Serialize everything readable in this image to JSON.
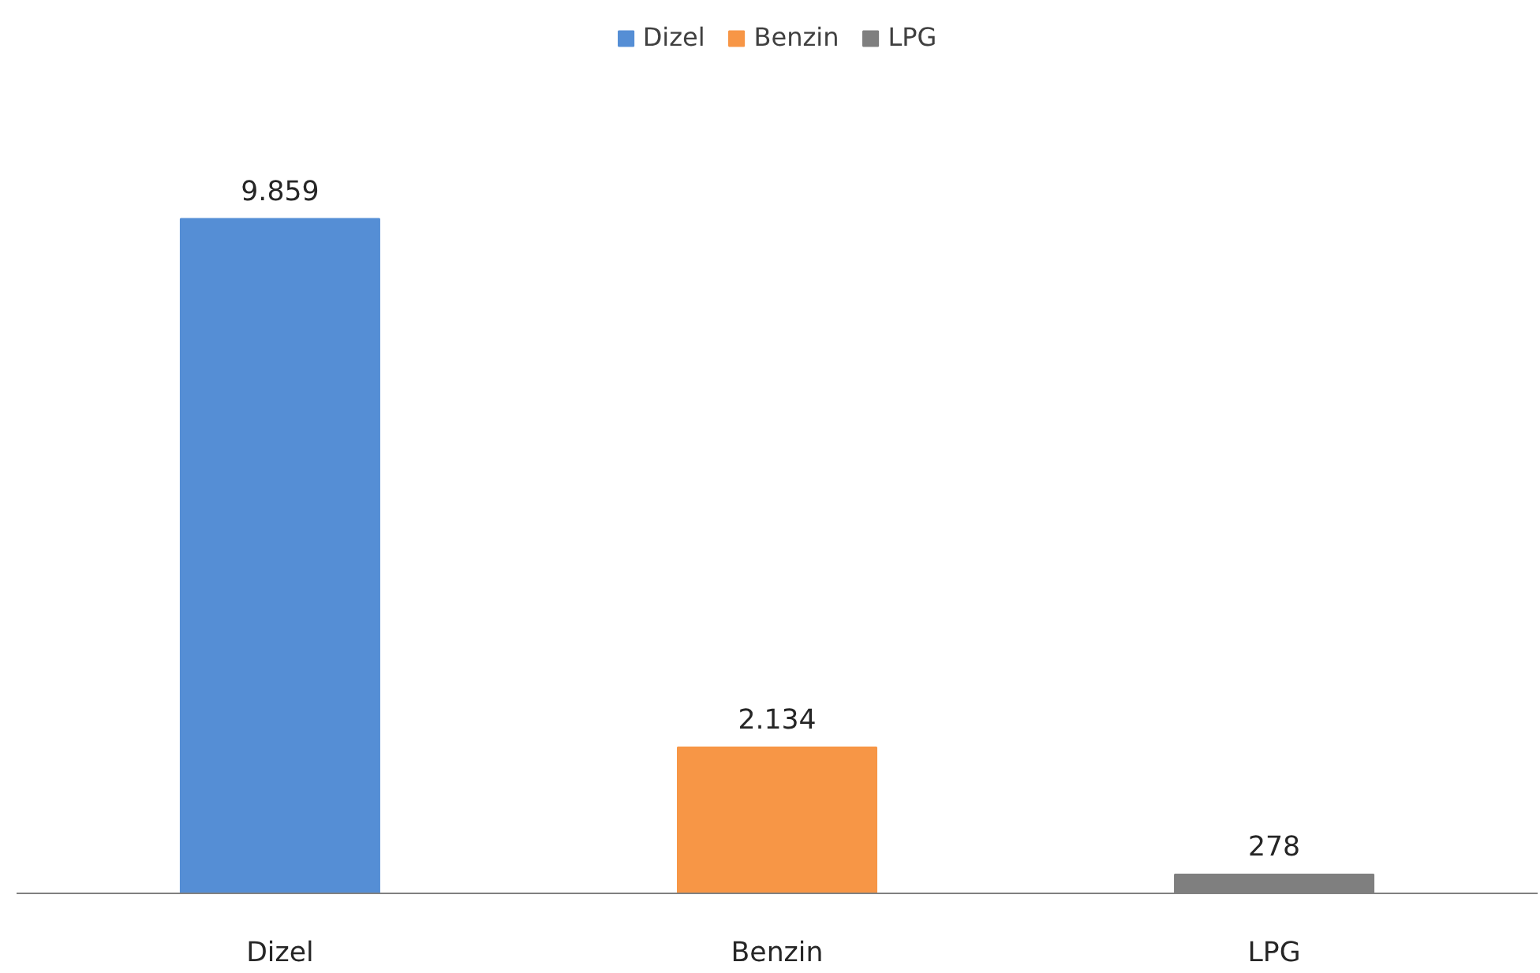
{
  "chart_data": {
    "type": "bar",
    "categories": [
      "Dizel",
      "Benzin",
      "LPG"
    ],
    "series": [
      {
        "name": "Dizel",
        "color": "#558ed5",
        "values": [
          9859,
          null,
          null
        ],
        "value_labels": [
          "9.859",
          null,
          null
        ]
      },
      {
        "name": "Benzin",
        "color": "#f79646",
        "values": [
          null,
          2134,
          null
        ],
        "value_labels": [
          null,
          "2.134",
          null
        ]
      },
      {
        "name": "LPG",
        "color": "#7f7f7f",
        "values": [
          null,
          null,
          278
        ],
        "value_labels": [
          null,
          null,
          "278"
        ]
      }
    ],
    "legend": "top",
    "grid": false
  }
}
